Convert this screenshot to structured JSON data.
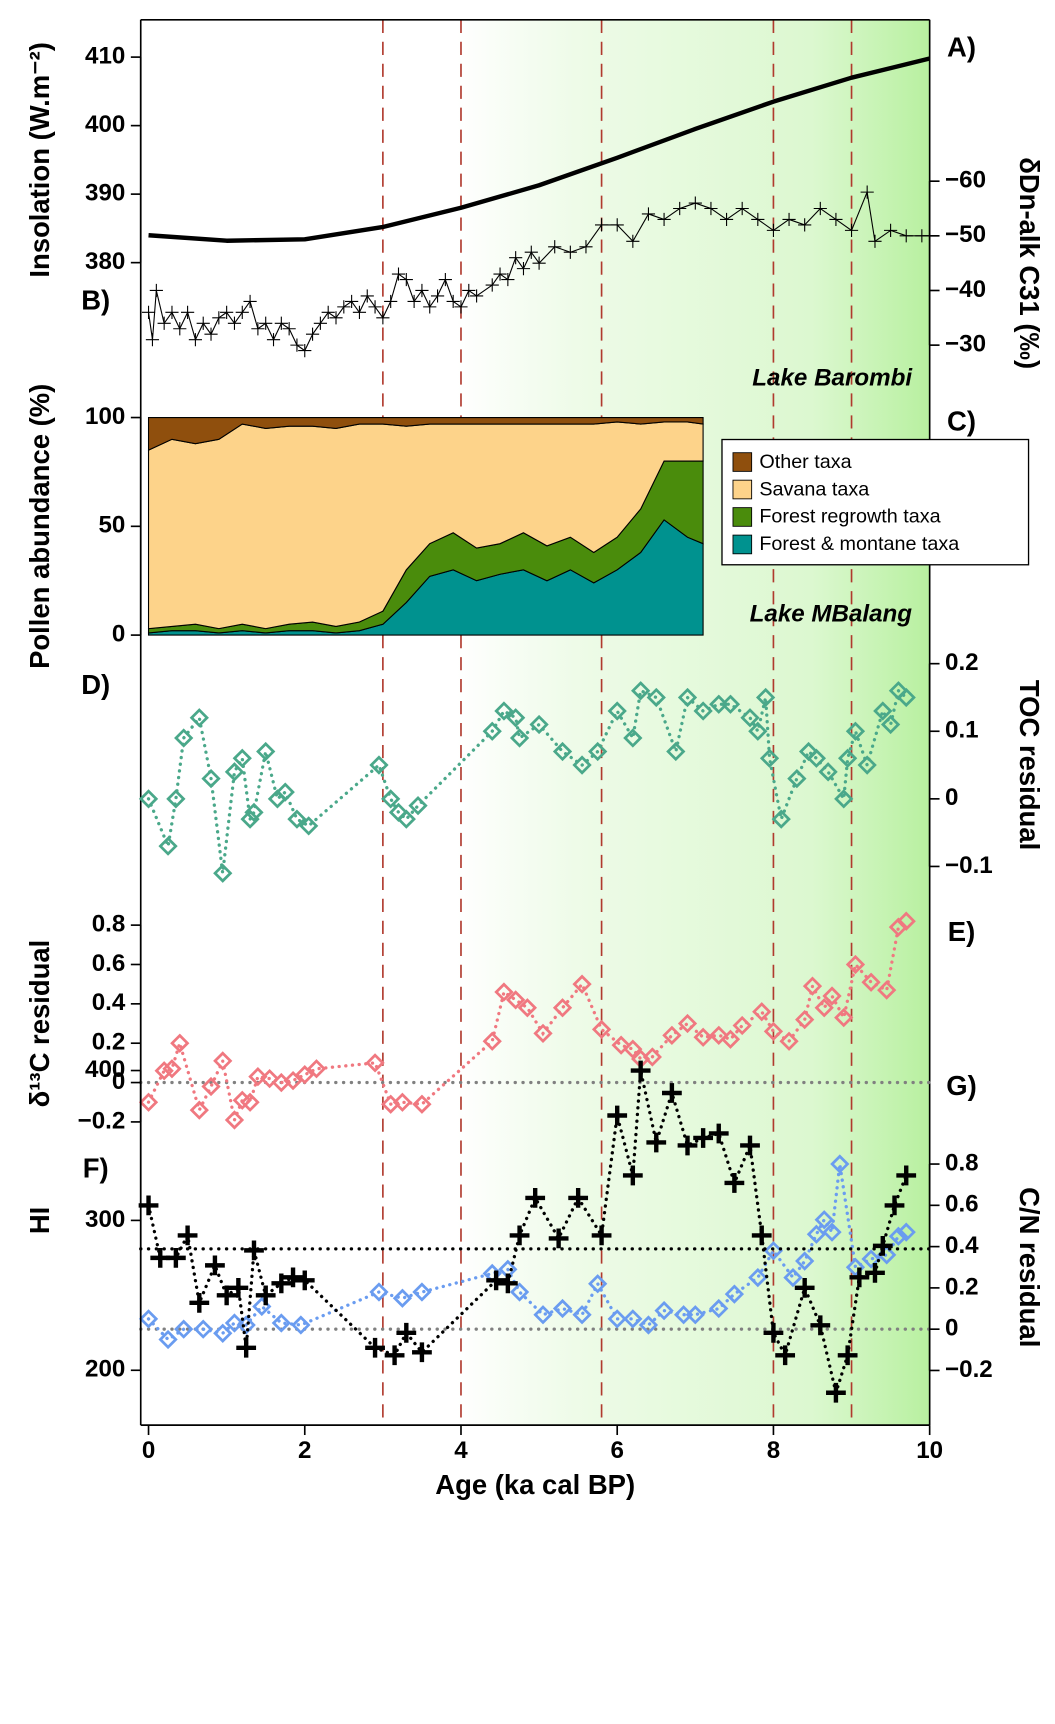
{
  "chart_data": [
    {
      "type": "line",
      "panel_label": "A)",
      "ylabel": "Insolation (W.m⁻²)",
      "color": "#000000",
      "line_width": 4,
      "x": [
        0,
        1,
        2,
        3,
        4,
        5,
        6,
        7,
        8,
        9,
        10
      ],
      "values": [
        384,
        383.2,
        383.4,
        385.2,
        388,
        391.3,
        395.3,
        399.5,
        403.5,
        407,
        409.8
      ],
      "ylim": [
        378,
        412
      ],
      "yticks": [
        380,
        390,
        400,
        410
      ]
    },
    {
      "type": "line",
      "panel_label": "B)",
      "ylabel": "δDn-alk C31 (‰)",
      "annotation": "Lake Barombi",
      "color": "#000000",
      "line_width": 1,
      "marker": "plus",
      "y_reversed": true,
      "x": [
        0,
        0.05,
        0.1,
        0.2,
        0.3,
        0.4,
        0.5,
        0.6,
        0.7,
        0.8,
        0.9,
        1.0,
        1.1,
        1.2,
        1.3,
        1.4,
        1.5,
        1.6,
        1.7,
        1.8,
        1.9,
        2.0,
        2.1,
        2.2,
        2.3,
        2.4,
        2.5,
        2.6,
        2.7,
        2.8,
        2.9,
        3.0,
        3.1,
        3.2,
        3.3,
        3.4,
        3.5,
        3.6,
        3.7,
        3.8,
        3.9,
        4.0,
        4.1,
        4.2,
        4.4,
        4.5,
        4.6,
        4.7,
        4.8,
        4.9,
        5.0,
        5.2,
        5.4,
        5.6,
        5.8,
        6.0,
        6.2,
        6.4,
        6.6,
        6.8,
        7.0,
        7.2,
        7.4,
        7.6,
        7.8,
        8.0,
        8.2,
        8.4,
        8.6,
        8.8,
        9.0,
        9.2,
        9.3,
        9.5,
        9.7,
        9.9,
        10.0
      ],
      "values": [
        -36,
        -31,
        -40,
        -34,
        -36,
        -33,
        -36,
        -31,
        -34,
        -32,
        -35,
        -36,
        -34,
        -36,
        -38,
        -33,
        -34,
        -31,
        -34,
        -33,
        -30,
        -29,
        -32,
        -34,
        -36,
        -35,
        -37,
        -38,
        -36,
        -39,
        -37,
        -35,
        -38,
        -43,
        -42,
        -38,
        -40,
        -37,
        -39,
        -42,
        -38,
        -37,
        -40,
        -39,
        -41,
        -43,
        -42,
        -46,
        -44,
        -47,
        -45,
        -48,
        -47,
        -48,
        -52,
        -52,
        -49,
        -54,
        -53,
        -55,
        -56,
        -55,
        -53,
        -55,
        -53,
        -51,
        -53,
        -52,
        -55,
        -53,
        -51,
        -58,
        -49,
        -51,
        -50,
        -50,
        -50
      ],
      "ylim": [
        -64,
        -26
      ],
      "yticks": [
        {
          "value": -60,
          "label": "−60"
        },
        {
          "value": -50,
          "label": "−50"
        },
        {
          "value": -40,
          "label": "−40"
        },
        {
          "value": -30,
          "label": "−30"
        }
      ]
    },
    {
      "type": "area",
      "panel_label": "C)",
      "ylabel": "Pollen abundance (%)",
      "annotation": "Lake MBalang",
      "x": [
        0,
        0.3,
        0.6,
        0.9,
        1.2,
        1.5,
        1.8,
        2.1,
        2.4,
        2.7,
        3.0,
        3.3,
        3.6,
        3.9,
        4.2,
        4.5,
        4.8,
        5.1,
        5.4,
        5.7,
        6.0,
        6.3,
        6.6,
        6.9,
        7.1
      ],
      "series": [
        {
          "name": "Forest & montane taxa",
          "color": "#00928f",
          "values": [
            1,
            2,
            2,
            1,
            2,
            1,
            2,
            2,
            1,
            2,
            5,
            15,
            27,
            30,
            25,
            28,
            30,
            25,
            30,
            24,
            30,
            38,
            53,
            45,
            42
          ]
        },
        {
          "name": "Forest regrowth taxa",
          "color": "#4a8c0c",
          "values": [
            2,
            2,
            3,
            2,
            3,
            2,
            3,
            4,
            3,
            4,
            6,
            15,
            15,
            17,
            15,
            14,
            17,
            16,
            15,
            14,
            15,
            20,
            27,
            35,
            38
          ]
        },
        {
          "name": "Savana taxa",
          "color": "#fdd38a",
          "values": [
            82,
            86,
            83,
            87,
            92,
            92,
            91,
            90,
            91,
            91,
            86,
            66,
            55,
            50,
            57,
            55,
            50,
            56,
            52,
            59,
            53,
            39,
            18,
            18,
            17
          ]
        },
        {
          "name": "Other taxa",
          "color": "#8f4f0d",
          "values": [
            15,
            10,
            12,
            10,
            3,
            5,
            4,
            4,
            5,
            3,
            3,
            4,
            3,
            3,
            3,
            3,
            3,
            3,
            3,
            3,
            2,
            3,
            2,
            2,
            3
          ]
        }
      ],
      "ylim": [
        0,
        100
      ],
      "yticks": [
        0,
        50,
        100
      ]
    },
    {
      "type": "scatter",
      "panel_label": "D)",
      "ylabel": "TOC residual",
      "color": "#4aa88a",
      "marker": "diamond",
      "connect": true,
      "x": [
        0,
        0.25,
        0.35,
        0.45,
        0.65,
        0.8,
        0.95,
        1.1,
        1.2,
        1.3,
        1.35,
        1.5,
        1.65,
        1.75,
        1.9,
        2.05,
        2.95,
        3.1,
        3.2,
        3.3,
        3.45,
        4.4,
        4.55,
        4.7,
        4.75,
        5.0,
        5.3,
        5.55,
        5.75,
        6.0,
        6.2,
        6.3,
        6.5,
        6.75,
        6.9,
        7.1,
        7.3,
        7.45,
        7.7,
        7.8,
        7.9,
        7.95,
        8.1,
        8.3,
        8.45,
        8.55,
        8.7,
        8.9,
        8.95,
        9.05,
        9.2,
        9.4,
        9.5,
        9.6,
        9.7
      ],
      "values": [
        0.0,
        -0.07,
        0.0,
        0.09,
        0.12,
        0.03,
        -0.11,
        0.04,
        0.06,
        -0.03,
        -0.02,
        0.07,
        0.0,
        0.01,
        -0.03,
        -0.04,
        0.05,
        0.0,
        -0.02,
        -0.03,
        -0.01,
        0.1,
        0.13,
        0.12,
        0.09,
        0.11,
        0.07,
        0.05,
        0.07,
        0.13,
        0.09,
        0.16,
        0.15,
        0.07,
        0.15,
        0.13,
        0.14,
        0.14,
        0.12,
        0.1,
        0.15,
        0.06,
        -0.03,
        0.03,
        0.07,
        0.06,
        0.04,
        0.0,
        0.06,
        0.1,
        0.05,
        0.13,
        0.11,
        0.16,
        0.15
      ],
      "ylim": [
        -0.13,
        0.2
      ],
      "yticks": [
        {
          "value": -0.1,
          "label": "−0.1"
        },
        0,
        0.1,
        0.2
      ]
    },
    {
      "type": "scatter",
      "panel_label": "E)",
      "ylabel": "δ¹³C residual",
      "color": "#f07880",
      "marker": "diamond",
      "connect": true,
      "hline": 0,
      "hline_color": "#808080",
      "x": [
        0,
        0.2,
        0.3,
        0.4,
        0.65,
        0.8,
        0.95,
        1.1,
        1.2,
        1.3,
        1.4,
        1.55,
        1.7,
        1.85,
        2.0,
        2.15,
        2.9,
        3.1,
        3.25,
        3.5,
        4.4,
        4.55,
        4.7,
        4.85,
        5.05,
        5.3,
        5.55,
        5.8,
        6.05,
        6.2,
        6.3,
        6.45,
        6.7,
        6.9,
        7.1,
        7.3,
        7.45,
        7.6,
        7.85,
        8.0,
        8.2,
        8.4,
        8.5,
        8.65,
        8.75,
        8.9,
        9.05,
        9.25,
        9.45,
        9.6,
        9.7
      ],
      "values": [
        -0.1,
        0.06,
        0.07,
        0.2,
        -0.14,
        -0.02,
        0.11,
        -0.19,
        -0.09,
        -0.1,
        0.03,
        0.02,
        0.0,
        0.01,
        0.04,
        0.07,
        0.1,
        -0.11,
        -0.1,
        -0.11,
        0.21,
        0.46,
        0.42,
        0.38,
        0.25,
        0.38,
        0.5,
        0.27,
        0.19,
        0.17,
        0.12,
        0.13,
        0.24,
        0.3,
        0.23,
        0.24,
        0.22,
        0.29,
        0.36,
        0.26,
        0.21,
        0.32,
        0.49,
        0.38,
        0.44,
        0.33,
        0.6,
        0.51,
        0.47,
        0.79,
        0.82
      ],
      "ylim": [
        -0.25,
        0.85
      ],
      "yticks": [
        {
          "value": -0.2,
          "label": "−0.2"
        },
        0,
        0.2,
        0.4,
        0.6,
        0.8
      ]
    },
    {
      "type": "scatter",
      "panel_label": "F)",
      "ylabel": "C/N residual",
      "color": "#6a9cf0",
      "marker": "diamond",
      "connect": true,
      "hline": 0,
      "hline_color": "#808080",
      "x": [
        0,
        0.25,
        0.45,
        0.7,
        0.95,
        1.1,
        1.25,
        1.45,
        1.7,
        1.95,
        2.95,
        3.25,
        3.5,
        4.4,
        4.6,
        4.75,
        5.05,
        5.3,
        5.55,
        5.75,
        6.0,
        6.2,
        6.4,
        6.6,
        6.85,
        7.0,
        7.3,
        7.5,
        7.8,
        8.0,
        8.25,
        8.4,
        8.55,
        8.65,
        8.75,
        8.85,
        9.05,
        9.25,
        9.45,
        9.6,
        9.7
      ],
      "values": [
        0.05,
        -0.05,
        0.0,
        0.0,
        -0.02,
        0.03,
        0.02,
        0.11,
        0.03,
        0.02,
        0.18,
        0.15,
        0.18,
        0.27,
        0.29,
        0.18,
        0.07,
        0.1,
        0.07,
        0.22,
        0.05,
        0.05,
        0.02,
        0.09,
        0.07,
        0.07,
        0.1,
        0.17,
        0.25,
        0.38,
        0.25,
        0.33,
        0.46,
        0.53,
        0.47,
        0.8,
        0.3,
        0.34,
        0.36,
        0.45,
        0.47
      ],
      "ylim": [
        -0.22,
        0.85
      ],
      "yticks": [
        {
          "value": -0.2,
          "label": "−0.2"
        },
        0,
        0.2,
        0.4,
        0.6,
        0.8
      ]
    },
    {
      "type": "scatter",
      "panel_label": "G)",
      "ylabel": "HI",
      "xlabel": "Age (ka cal BP)",
      "color": "#000000",
      "marker": "plus",
      "connect": true,
      "hline": 281,
      "hline_color": "#000000",
      "x": [
        0,
        0.15,
        0.35,
        0.5,
        0.65,
        0.85,
        1.0,
        1.15,
        1.25,
        1.35,
        1.5,
        1.7,
        1.85,
        2.0,
        2.9,
        3.15,
        3.3,
        3.5,
        4.45,
        4.6,
        4.75,
        4.95,
        5.25,
        5.5,
        5.8,
        6.0,
        6.2,
        6.3,
        6.5,
        6.7,
        6.9,
        7.1,
        7.3,
        7.5,
        7.7,
        7.85,
        8.0,
        8.15,
        8.4,
        8.6,
        8.8,
        8.95,
        9.1,
        9.3,
        9.4,
        9.55,
        9.7
      ],
      "values": [
        310,
        275,
        275,
        290,
        245,
        270,
        250,
        255,
        215,
        280,
        250,
        258,
        262,
        260,
        215,
        210,
        225,
        212,
        260,
        258,
        290,
        315,
        288,
        315,
        290,
        370,
        330,
        400,
        352,
        385,
        350,
        355,
        358,
        325,
        350,
        290,
        225,
        210,
        255,
        230,
        185,
        210,
        262,
        265,
        283,
        310,
        330
      ],
      "ylim": [
        170,
        420
      ],
      "yticks": [
        200,
        300,
        400
      ],
      "xlim": [
        -0.1,
        10
      ],
      "xticks": [
        0,
        2,
        4,
        6,
        8,
        10
      ],
      "vlines": [
        3,
        4,
        5.8,
        8,
        9
      ]
    }
  ]
}
